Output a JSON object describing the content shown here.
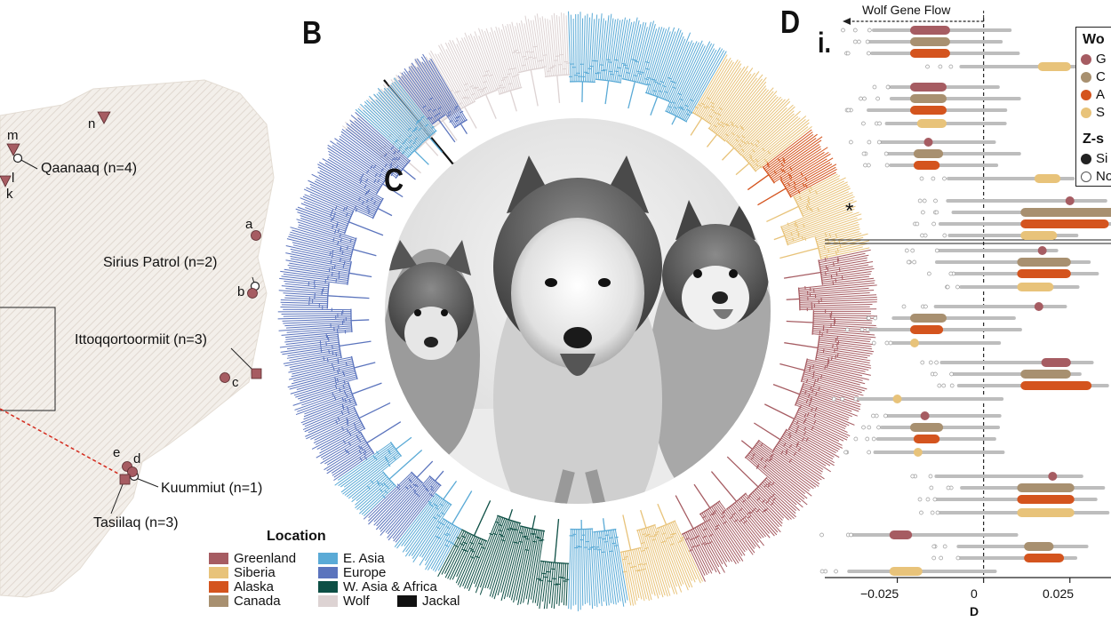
{
  "panels": {
    "b": "B",
    "c": "C",
    "d": "D",
    "d_sub": "i."
  },
  "map": {
    "places": [
      {
        "name": "qaanaaq",
        "label": "Qaanaaq (n=4)"
      },
      {
        "name": "sirius",
        "label": "Sirius Patrol (n=2)"
      },
      {
        "name": "ittoq",
        "label": "Ittoqqortoormiit (n=3)"
      },
      {
        "name": "kuummiut",
        "label": "Kuummiut (n=1)"
      },
      {
        "name": "tasiilaq",
        "label": "Tasiilaq (n=3)"
      }
    ],
    "sites": [
      "m",
      "n",
      "l",
      "k",
      "a",
      "b",
      "c",
      "e",
      "d"
    ]
  },
  "location_legend": {
    "title": "Location",
    "items": [
      {
        "label": "Greenland",
        "color": "#a65c62"
      },
      {
        "label": "E. Asia",
        "color": "#5aaad6"
      },
      {
        "label": "Siberia",
        "color": "#e8c37a"
      },
      {
        "label": "Europe",
        "color": "#5b74bd"
      },
      {
        "label": "Alaska",
        "color": "#d4541e"
      },
      {
        "label": "W. Asia & Africa",
        "color": "#0d4f45"
      },
      {
        "label": "Canada",
        "color": "#a89070"
      },
      {
        "label": "Wolf",
        "color": "#ddd3d3"
      },
      {
        "label": "Jackal",
        "color": "#111111"
      }
    ]
  },
  "gene_flow": {
    "label": "Wolf Gene Flow",
    "marker": "*"
  },
  "d_legend": {
    "title1": "Wo",
    "items1": [
      {
        "label": "G",
        "color": "#a65c62"
      },
      {
        "label": "C",
        "color": "#a89070"
      },
      {
        "label": "A",
        "color": "#d4541e"
      },
      {
        "label": "S",
        "color": "#e8c37a"
      }
    ],
    "title2": "Z-s",
    "items2": [
      {
        "label": "Si",
        "filled": true
      },
      {
        "label": "No",
        "filled": false
      }
    ]
  },
  "chart_data": {
    "type": "scatter",
    "xlabel": "D",
    "x_ticks": [
      "−0.025",
      "0",
      "0.025"
    ],
    "x_tick_values": [
      -0.025,
      0,
      0.025
    ],
    "xlim": [
      -0.046,
      0.04
    ],
    "rows": [
      {
        "color": "#a65c62",
        "range": [
          -0.02,
          -0.011
        ]
      },
      {
        "color": "#a89070",
        "range": [
          -0.02,
          -0.011
        ]
      },
      {
        "color": "#d4541e",
        "range": [
          -0.02,
          -0.011
        ]
      },
      {
        "color": "#e8c37a",
        "range": [
          0.017,
          0.024
        ]
      },
      {
        "color": "#a65c62",
        "range": [
          -0.02,
          -0.012
        ]
      },
      {
        "color": "#a89070",
        "range": [
          -0.02,
          -0.012
        ]
      },
      {
        "color": "#d4541e",
        "range": [
          -0.02,
          -0.012
        ]
      },
      {
        "color": "#e8c37a",
        "range": [
          -0.018,
          -0.012
        ]
      },
      {
        "color": "#a65c62",
        "range": [
          -0.016,
          -0.016
        ]
      },
      {
        "color": "#a89070",
        "range": [
          -0.019,
          -0.013
        ]
      },
      {
        "color": "#d4541e",
        "range": [
          -0.019,
          -0.014
        ]
      },
      {
        "color": "#e8c37a",
        "range": [
          0.016,
          0.021
        ]
      },
      {
        "color": "#a65c62",
        "range": [
          0.025,
          0.025
        ]
      },
      {
        "color": "#a89070",
        "range": [
          0.012,
          0.04
        ]
      },
      {
        "color": "#d4541e",
        "range": [
          0.012,
          0.035
        ]
      },
      {
        "color": "#e8c37a",
        "range": [
          0.012,
          0.02
        ]
      },
      {
        "color": "#a65c62",
        "range": [
          0.017,
          0.017
        ]
      },
      {
        "color": "#a89070",
        "range": [
          0.011,
          0.024
        ]
      },
      {
        "color": "#d4541e",
        "range": [
          0.011,
          0.024
        ]
      },
      {
        "color": "#e8c37a",
        "range": [
          0.011,
          0.019
        ]
      },
      {
        "color": "#a65c62",
        "range": [
          0.016,
          0.016
        ]
      },
      {
        "color": "#a89070",
        "range": [
          -0.02,
          -0.012
        ]
      },
      {
        "color": "#d4541e",
        "range": [
          -0.02,
          -0.013
        ]
      },
      {
        "color": "#e8c37a",
        "range": [
          -0.02,
          -0.02
        ]
      },
      {
        "color": "#a65c62",
        "range": [
          0.018,
          0.024
        ]
      },
      {
        "color": "#a89070",
        "range": [
          0.012,
          0.024
        ]
      },
      {
        "color": "#d4541e",
        "range": [
          0.012,
          0.03
        ]
      },
      {
        "color": "#e8c37a",
        "range": [
          -0.025,
          -0.025
        ]
      },
      {
        "color": "#a65c62",
        "range": [
          -0.017,
          -0.017
        ]
      },
      {
        "color": "#a89070",
        "range": [
          -0.02,
          -0.013
        ]
      },
      {
        "color": "#d4541e",
        "range": [
          -0.019,
          -0.014
        ]
      },
      {
        "color": "#e8c37a",
        "range": [
          -0.019,
          -0.019
        ]
      },
      {
        "color": "#a65c62",
        "range": [
          0.02,
          0.02
        ]
      },
      {
        "color": "#a89070",
        "range": [
          0.011,
          0.025
        ]
      },
      {
        "color": "#d4541e",
        "range": [
          0.011,
          0.025
        ]
      },
      {
        "color": "#e8c37a",
        "range": [
          0.011,
          0.025
        ]
      },
      {
        "color": "#a65c62",
        "range": [
          -0.026,
          -0.022
        ]
      },
      {
        "color": "#a89070",
        "range": [
          0.013,
          0.019
        ]
      },
      {
        "color": "#d4541e",
        "range": [
          0.013,
          0.022
        ]
      },
      {
        "color": "#e8c37a",
        "range": [
          -0.026,
          -0.019
        ]
      }
    ]
  }
}
